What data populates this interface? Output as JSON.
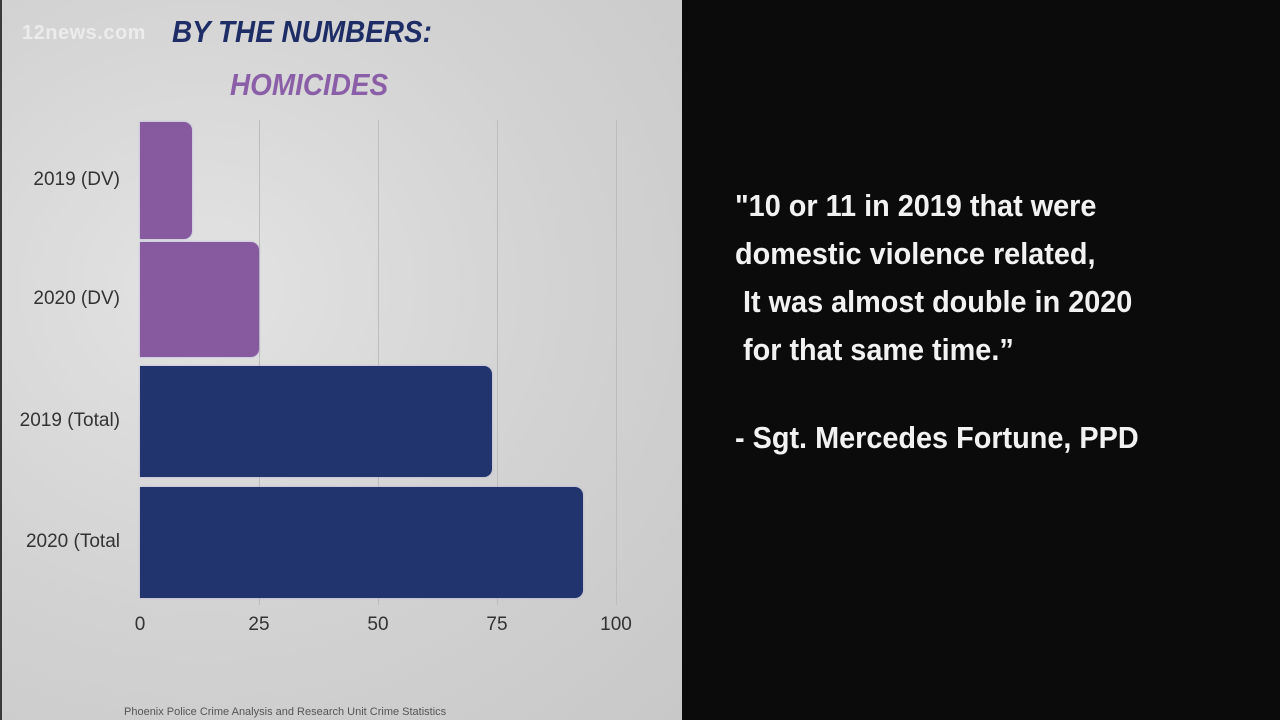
{
  "watermark": "12news.com",
  "title": "BY THE NUMBERS:",
  "subtitle": "HOMICIDES",
  "source": "Phoenix Police Crime Analysis and Research Unit Crime Statistics",
  "quote": {
    "lines": [
      "\"10 or 11 in 2019 that were",
      "domestic violence related,",
      " It was almost double in 2020",
      " for that same time.”"
    ],
    "attribution": "- Sgt. Mercedes Fortune, PPD"
  },
  "colors": {
    "dv": "#875aa0",
    "total": "#22346e",
    "title": "#1f2d66",
    "subtitle": "#8b5fa8"
  },
  "chart_data": {
    "type": "bar",
    "orientation": "horizontal",
    "title": "BY THE NUMBERS: HOMICIDES",
    "categories": [
      "2019 (DV)",
      "2020 (DV)",
      "2019 (Total)",
      "2020 (Total"
    ],
    "values": [
      11,
      25,
      74,
      93
    ],
    "bar_colors": [
      "#875aa0",
      "#875aa0",
      "#22346e",
      "#22346e"
    ],
    "xlabel": "",
    "ylabel": "",
    "xlim": [
      0,
      100
    ],
    "xticks": [
      "0",
      "25",
      "50",
      "75",
      "100"
    ],
    "grid": true,
    "legend": null,
    "source": "Phoenix Police Crime Analysis and Research Unit Crime Statistics"
  }
}
